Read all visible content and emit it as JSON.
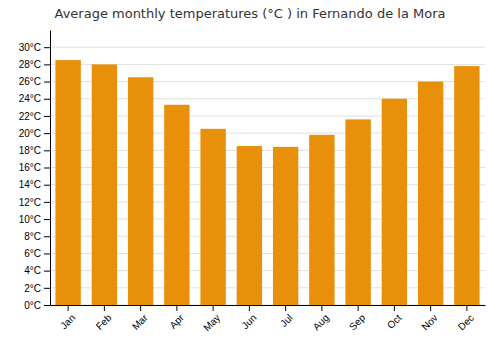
{
  "chart_data": {
    "type": "bar",
    "title": "Average monthly temperatures (°C ) in Fernando de la Mora",
    "categories": [
      "Jan",
      "Feb",
      "Mar",
      "Apr",
      "May",
      "Jun",
      "Jul",
      "Aug",
      "Sep",
      "Oct",
      "Nov",
      "Dec"
    ],
    "values": [
      28.5,
      28.0,
      26.5,
      23.3,
      20.5,
      18.5,
      18.4,
      19.8,
      21.6,
      24.0,
      26.0,
      27.8
    ],
    "color": "#E8900A",
    "ylim": [
      0,
      32
    ],
    "yticks": [
      {
        "value": 0,
        "label": "0°C"
      },
      {
        "value": 2,
        "label": "2°C"
      },
      {
        "value": 4,
        "label": "4°C"
      },
      {
        "value": 6,
        "label": "6°C"
      },
      {
        "value": 8,
        "label": "8°C"
      },
      {
        "value": 10,
        "label": "10°C"
      },
      {
        "value": 12,
        "label": "12°C"
      },
      {
        "value": 14,
        "label": "14°C"
      },
      {
        "value": 16,
        "label": "16°C"
      },
      {
        "value": 18,
        "label": "18°C"
      },
      {
        "value": 20,
        "label": "20°C"
      },
      {
        "value": 22,
        "label": "22°C"
      },
      {
        "value": 24,
        "label": "24°C"
      },
      {
        "value": 26,
        "label": "26°C"
      },
      {
        "value": 28,
        "label": "28°C"
      },
      {
        "value": 30,
        "label": "30°C"
      }
    ],
    "grid": true
  }
}
